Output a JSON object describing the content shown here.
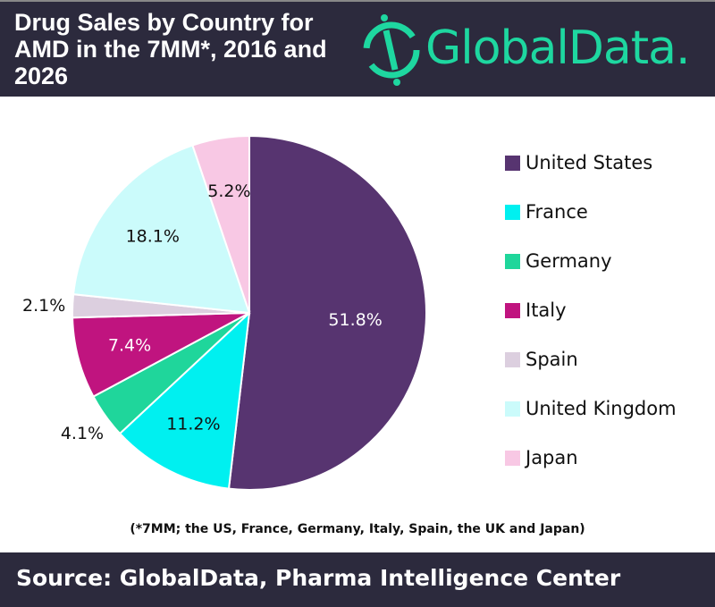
{
  "header": {
    "title": "Drug Sales by Country for AMD in the 7MM*, 2016 and 2026",
    "logo": "GlobalData."
  },
  "chart_data": {
    "type": "pie",
    "title": "Drug Sales by Country for AMD in the 7MM*, 2016 and 2026",
    "legend_position": "right",
    "slices": [
      {
        "label": "United States",
        "value": 51.8,
        "text": "51.8%",
        "color": "#573470",
        "labelColor": "#fff"
      },
      {
        "label": "France",
        "value": 11.2,
        "text": "11.2%",
        "color": "#00f0f0",
        "labelColor": "#111"
      },
      {
        "label": "Germany",
        "value": 4.1,
        "text": "4.1%",
        "color": "#1fd69b",
        "labelColor": "#111"
      },
      {
        "label": "Italy",
        "value": 7.4,
        "text": "7.4%",
        "color": "#c0147f",
        "labelColor": "#fff"
      },
      {
        "label": "Spain",
        "value": 2.1,
        "text": "2.1%",
        "color": "#dccfdf",
        "labelColor": "#111"
      },
      {
        "label": "United Kingdom",
        "value": 18.1,
        "text": "18.1%",
        "color": "#cbfbfb",
        "labelColor": "#111"
      },
      {
        "label": "Japan",
        "value": 5.2,
        "text": "5.2%",
        "color": "#f8c8e4",
        "labelColor": "#111"
      }
    ]
  },
  "footnote": "(*7MM; the US, France, Germany, Italy, Spain, the UK and Japan)",
  "footer": {
    "source": "Source: GlobalData, Pharma Intelligence Center"
  }
}
